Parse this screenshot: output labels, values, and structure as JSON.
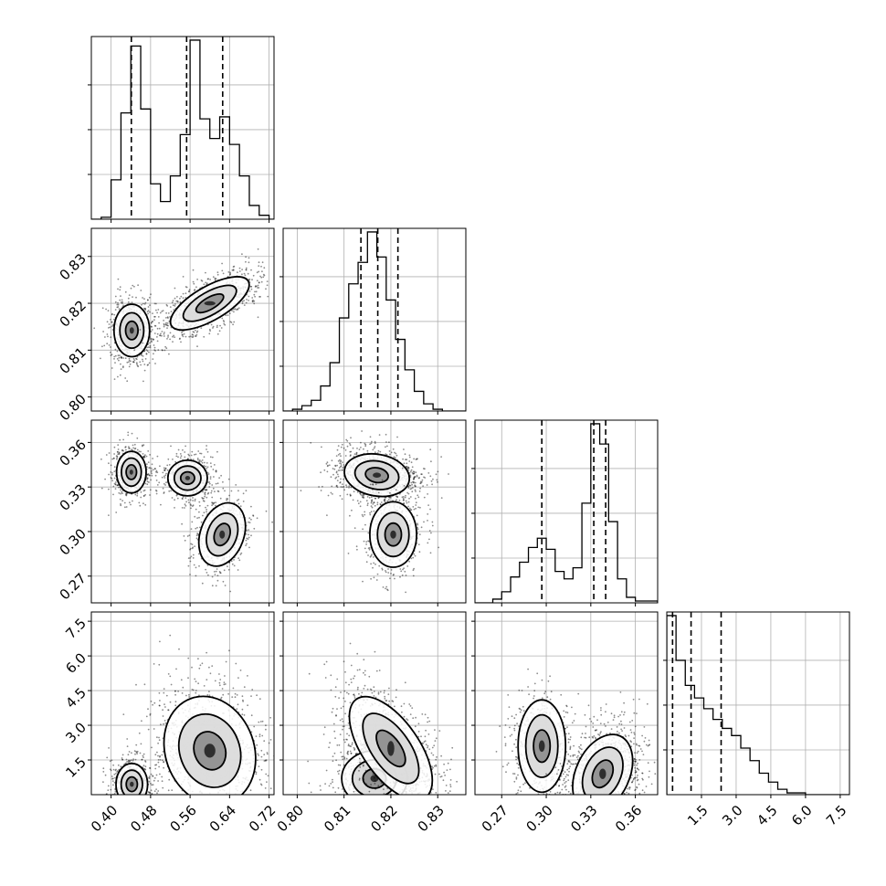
{
  "chart_data": {
    "type": "corner",
    "parameters": 4,
    "grid": true,
    "quantile_lines": "dashed",
    "colors": {
      "contour": "#000000",
      "points": "#000000",
      "grid": "#b0b0b0"
    },
    "ranges": [
      [
        0.36,
        0.73
      ],
      [
        0.797,
        0.836
      ],
      [
        0.252,
        0.375
      ],
      [
        0.0,
        7.9
      ]
    ],
    "ticks": [
      {
        "values": [
          0.4,
          0.48,
          0.56,
          0.64,
          0.72
        ],
        "labels": [
          "0.40",
          "0.48",
          "0.56",
          "0.64",
          "0.72"
        ]
      },
      {
        "values": [
          0.8,
          0.81,
          0.82,
          0.83
        ],
        "labels": [
          "0.80",
          "0.81",
          "0.82",
          "0.83"
        ]
      },
      {
        "values": [
          0.27,
          0.3,
          0.33,
          0.36
        ],
        "labels": [
          "0.27",
          "0.30",
          "0.33",
          "0.36"
        ]
      },
      {
        "values": [
          1.5,
          3.0,
          4.5,
          6.0,
          7.5
        ],
        "labels": [
          "1.5",
          "3.0",
          "4.5",
          "6.0",
          "7.5"
        ]
      }
    ],
    "quantiles": [
      [
        0.441,
        0.553,
        0.626
      ],
      [
        0.8136,
        0.8172,
        0.8215
      ],
      [
        0.297,
        0.332,
        0.34
      ],
      [
        0.25,
        1.05,
        2.35
      ]
    ],
    "histograms": [
      {
        "bins": [
          0.36,
          0.38,
          0.4,
          0.42,
          0.44,
          0.46,
          0.48,
          0.5,
          0.52,
          0.54,
          0.56,
          0.58,
          0.6,
          0.62,
          0.64,
          0.66,
          0.68,
          0.7,
          0.72,
          0.73
        ],
        "counts": [
          0,
          1,
          20,
          54,
          88,
          56,
          18,
          9,
          22,
          43,
          91,
          51,
          41,
          52,
          38,
          22,
          7,
          2,
          0
        ]
      },
      {
        "bins": [
          0.797,
          0.799,
          0.801,
          0.803,
          0.805,
          0.807,
          0.809,
          0.811,
          0.813,
          0.815,
          0.817,
          0.819,
          0.821,
          0.823,
          0.825,
          0.827,
          0.829,
          0.831,
          0.833,
          0.836
        ],
        "counts": [
          0,
          1,
          3,
          6,
          14,
          27,
          52,
          71,
          83,
          100,
          86,
          62,
          40,
          23,
          11,
          4,
          1,
          0,
          0
        ]
      },
      {
        "bins": [
          0.252,
          0.258,
          0.264,
          0.27,
          0.276,
          0.282,
          0.288,
          0.294,
          0.3,
          0.306,
          0.312,
          0.318,
          0.324,
          0.33,
          0.336,
          0.342,
          0.348,
          0.354,
          0.36,
          0.375
        ],
        "counts": [
          0,
          0,
          2,
          6,
          14,
          22,
          30,
          35,
          29,
          17,
          13,
          19,
          54,
          97,
          86,
          44,
          13,
          3,
          1
        ]
      },
      {
        "bins": [
          0.0,
          0.4,
          0.8,
          1.2,
          1.6,
          2.0,
          2.4,
          2.8,
          3.2,
          3.6,
          4.0,
          4.4,
          4.8,
          5.2,
          5.6,
          6.0,
          6.4,
          6.8,
          7.2,
          7.9
        ],
        "counts": [
          100,
          75,
          61,
          54,
          48,
          42,
          37,
          33,
          26,
          19,
          12,
          7,
          3,
          1,
          1,
          0,
          0,
          0,
          0
        ]
      }
    ],
    "pairs": [
      {
        "row": 1,
        "col": 0,
        "x_param": 0,
        "y_param": 1,
        "clusters": [
          {
            "center": [
              0.442,
              0.8142
            ],
            "spread": [
              0.018,
              0.0028
            ],
            "angle": 0,
            "weight": 0.42
          },
          {
            "center": [
              0.6,
              0.82
            ],
            "spread": [
              0.045,
              0.0018
            ],
            "angle": 30,
            "weight": 0.58
          }
        ]
      },
      {
        "row": 2,
        "col": 0,
        "x_param": 0,
        "y_param": 2,
        "clusters": [
          {
            "center": [
              0.441,
              0.34
            ],
            "spread": [
              0.015,
              0.007
            ],
            "angle": 0,
            "weight": 0.36
          },
          {
            "center": [
              0.555,
              0.336
            ],
            "spread": [
              0.02,
              0.006
            ],
            "angle": 0,
            "weight": 0.34
          },
          {
            "center": [
              0.625,
              0.298
            ],
            "spread": [
              0.022,
              0.011
            ],
            "angle": -20,
            "weight": 0.3
          }
        ]
      },
      {
        "row": 3,
        "col": 0,
        "x_param": 0,
        "y_param": 3,
        "clusters": [
          {
            "center": [
              0.442,
              0.45
            ],
            "spread": [
              0.016,
              0.45
            ],
            "angle": 0,
            "weight": 0.4
          },
          {
            "center": [
              0.6,
              1.9
            ],
            "spread": [
              0.045,
              1.2
            ],
            "angle": 20,
            "weight": 0.6
          }
        ]
      },
      {
        "row": 2,
        "col": 1,
        "x_param": 1,
        "y_param": 2,
        "clusters": [
          {
            "center": [
              0.817,
              0.338
            ],
            "spread": [
              0.0035,
              0.007
            ],
            "angle": -10,
            "weight": 0.68
          },
          {
            "center": [
              0.8205,
              0.298
            ],
            "spread": [
              0.0025,
              0.011
            ],
            "angle": 0,
            "weight": 0.32
          }
        ]
      },
      {
        "row": 3,
        "col": 1,
        "x_param": 1,
        "y_param": 3,
        "clusters": [
          {
            "center": [
              0.8165,
              0.7
            ],
            "spread": [
              0.0035,
              0.6
            ],
            "angle": 0,
            "weight": 0.45
          },
          {
            "center": [
              0.82,
              2.0
            ],
            "spread": [
              0.003,
              1.3
            ],
            "angle": 35,
            "weight": 0.55
          }
        ]
      },
      {
        "row": 3,
        "col": 2,
        "x_param": 2,
        "y_param": 3,
        "clusters": [
          {
            "center": [
              0.297,
              2.1
            ],
            "spread": [
              0.008,
              1.0
            ],
            "angle": 0,
            "weight": 0.33
          },
          {
            "center": [
              0.338,
              0.9
            ],
            "spread": [
              0.009,
              0.9
            ],
            "angle": -25,
            "weight": 0.67
          }
        ]
      }
    ]
  }
}
